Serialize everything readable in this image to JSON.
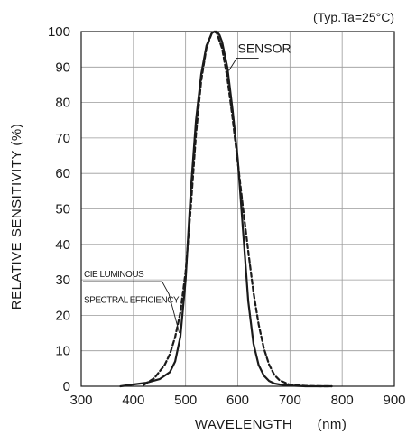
{
  "chart_data": {
    "type": "line",
    "condition_note": "(Typ.Ta=25°C)",
    "xlabel": "WAVELENGTH",
    "xunit": "(nm)",
    "ylabel": "RELATIVE SENSITIVITY (%)",
    "xlim": [
      300,
      900
    ],
    "ylim": [
      0,
      100
    ],
    "x_ticks": [
      300,
      400,
      500,
      600,
      700,
      800,
      900
    ],
    "y_ticks": [
      0,
      10,
      20,
      30,
      40,
      50,
      60,
      70,
      80,
      90,
      100
    ],
    "grid": true,
    "series": [
      {
        "name": "SENSOR",
        "style": "solid",
        "color": "#1a1a1a",
        "x": [
          375,
          400,
          425,
          450,
          470,
          480,
          490,
          500,
          510,
          520,
          530,
          540,
          550,
          555,
          560,
          565,
          570,
          580,
          590,
          600,
          610,
          620,
          630,
          640,
          650,
          660,
          670,
          680,
          700,
          730,
          760,
          780
        ],
        "y": [
          0,
          0.5,
          1,
          2,
          4,
          7,
          14,
          30,
          55,
          75,
          88,
          96,
          99.5,
          100,
          100,
          99,
          97,
          90,
          78,
          64,
          44,
          24,
          12,
          6,
          3,
          1.5,
          0.8,
          0.5,
          0.2,
          0,
          0,
          0
        ]
      },
      {
        "name": "CIE LUMINOUS SPECTRAL EFFICIENCY",
        "style": "dashed",
        "color": "#1a1a1a",
        "x": [
          420,
          440,
          460,
          470,
          480,
          490,
          500,
          510,
          520,
          530,
          540,
          550,
          555,
          560,
          570,
          580,
          590,
          600,
          610,
          620,
          630,
          640,
          650,
          660,
          670,
          680,
          700,
          730,
          760,
          780
        ],
        "y": [
          0.4,
          2.3,
          6,
          9.1,
          13.9,
          20.8,
          32.3,
          50.3,
          71,
          86.2,
          95.4,
          99.5,
          100,
          99.5,
          95.2,
          87,
          75.7,
          63.1,
          50.3,
          38.1,
          26.5,
          17.5,
          10.7,
          6.1,
          3.2,
          1.7,
          0.4,
          0.1,
          0,
          0
        ]
      }
    ],
    "annotations": {
      "sensor_label": "SENSOR",
      "cie_label_line1": "CIE LUMINOUS",
      "cie_label_line2": "SPECTRAL EFFICIENCY"
    }
  }
}
